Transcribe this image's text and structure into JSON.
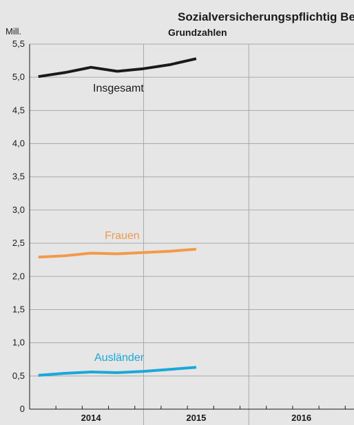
{
  "chart_data": {
    "type": "line",
    "title": "Sozialversicherungspflichtig Beschäftigte",
    "subtitle": "Grundzahlen",
    "ylabel": "Mill.",
    "ylim": [
      0,
      5.5
    ],
    "yticks": [
      "0",
      "0,5",
      "1,0",
      "1,5",
      "2,0",
      "2,5",
      "3,0",
      "3,5",
      "4,0",
      "4,5",
      "5,0",
      "5,5"
    ],
    "years": [
      "2014",
      "2015",
      "2016"
    ],
    "x": [
      "2013-12",
      "2014-03",
      "2014-06",
      "2014-09",
      "2014-12",
      "2015-03",
      "2015-06"
    ],
    "xlim": [
      "2013-11",
      "2016-12"
    ],
    "quarter_ticks": [
      "2014-02",
      "2014-05",
      "2014-08",
      "2014-11",
      "2015-02",
      "2015-05",
      "2015-08",
      "2015-11",
      "2016-02",
      "2016-05",
      "2016-08",
      "2016-11"
    ],
    "year_boundaries": [
      "2014-12",
      "2015-12"
    ],
    "grid": true,
    "series": [
      {
        "name": "Insgesamt",
        "color": "#1a1a1a",
        "values": [
          5.01,
          5.07,
          5.15,
          5.09,
          5.13,
          5.19,
          5.28
        ]
      },
      {
        "name": "Frauen",
        "color": "#f39a4a",
        "values": [
          2.29,
          2.31,
          2.35,
          2.34,
          2.36,
          2.38,
          2.41
        ]
      },
      {
        "name": "Ausländer",
        "color": "#1aa8d8",
        "values": [
          0.51,
          0.54,
          0.56,
          0.55,
          0.57,
          0.6,
          0.63
        ]
      }
    ]
  }
}
